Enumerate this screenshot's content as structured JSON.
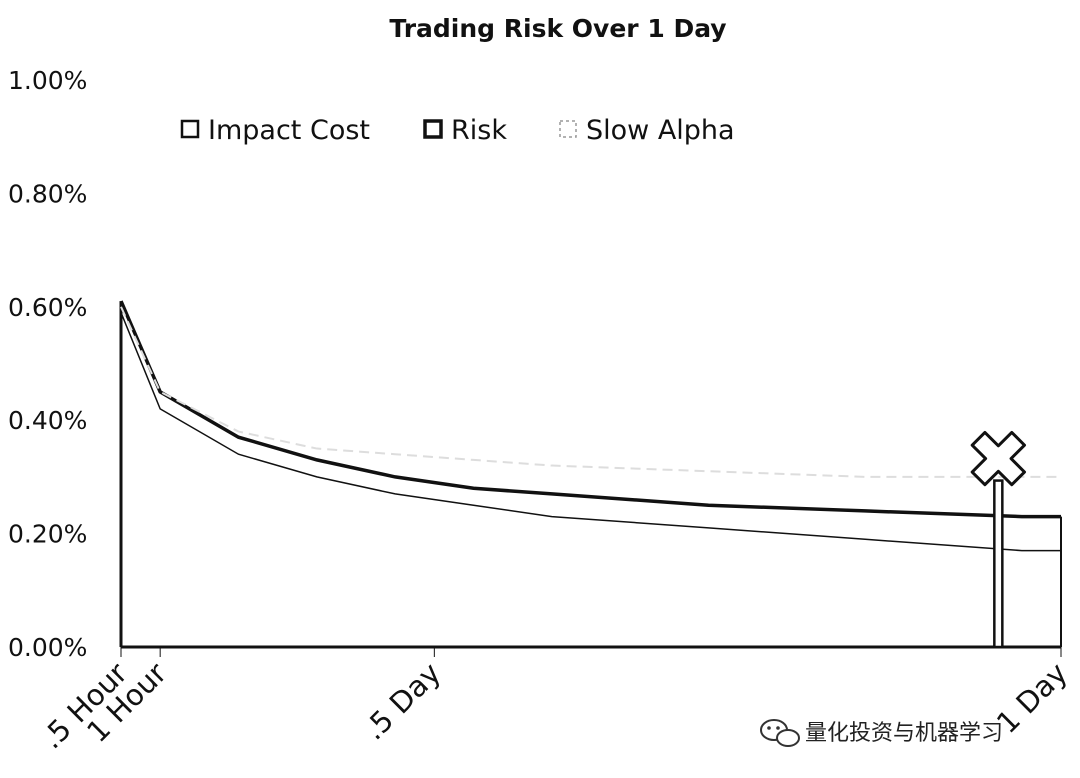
{
  "chart_data": {
    "type": "line",
    "title": "Trading Risk Over 1 Day",
    "x": [
      0.5,
      1,
      2,
      3,
      4,
      5,
      6,
      8,
      10,
      12
    ],
    "xticks": [
      {
        "label": ".5 Hour",
        "value": 0.5
      },
      {
        "label": "1 Hour",
        "value": 1
      },
      {
        "label": ".5 Day",
        "value": 4.5
      },
      {
        "label": "1 Day",
        "value": 12.5
      }
    ],
    "xlim": [
      0.5,
      12.5
    ],
    "ylim": [
      0,
      1.0
    ],
    "yticks": [
      "0.00%",
      "0.20%",
      "0.40%",
      "0.60%",
      "0.80%",
      "1.00%"
    ],
    "series": [
      {
        "name": "Impact Cost",
        "values": [
          0.59,
          0.42,
          0.34,
          0.3,
          0.27,
          0.25,
          0.23,
          0.21,
          0.19,
          0.17
        ],
        "color": "#111111",
        "style": "thin"
      },
      {
        "name": "Risk",
        "values": [
          0.61,
          0.45,
          0.37,
          0.33,
          0.3,
          0.28,
          0.27,
          0.25,
          0.24,
          0.23
        ],
        "color": "#111111",
        "style": "bold"
      },
      {
        "name": "Slow Alpha",
        "values": [
          0.6,
          0.45,
          0.38,
          0.35,
          0.34,
          0.33,
          0.32,
          0.31,
          0.3,
          0.3
        ],
        "color": "#dddddd",
        "style": "faint"
      }
    ],
    "marker": {
      "shape": "x",
      "x": 11.7,
      "y": 0.29
    },
    "legend": "top",
    "grid": false
  },
  "watermark": {
    "text": "量化投资与机器学习",
    "icon": "wechat-icon"
  }
}
